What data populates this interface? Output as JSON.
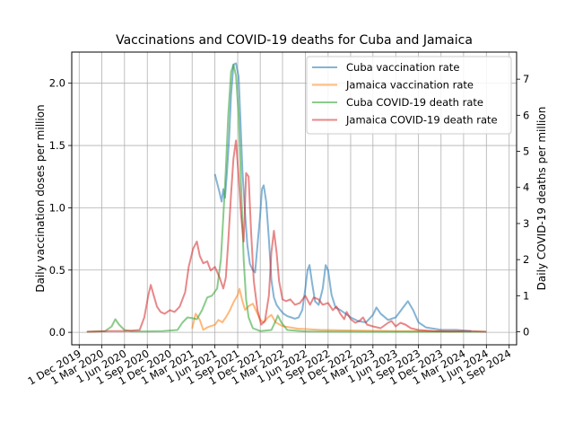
{
  "chart_data": {
    "type": "line",
    "title": "Vaccinations and COVID-19 deaths for Cuba and Jamaica",
    "ylabel_left": "Daily vaccination doses per million",
    "ylabel_right": "Daily COVID-19 deaths per million",
    "xlabel": "",
    "xlim": [
      "2019-11-01",
      "2024-10-01"
    ],
    "ylim_left": [
      -0.1,
      2.25
    ],
    "ylim_right": [
      -0.36,
      7.75
    ],
    "yticks_left": [
      0.0,
      0.5,
      1.0,
      1.5,
      2.0
    ],
    "ytick_labels_left": [
      "0.0",
      "0.5",
      "1.0",
      "1.5",
      "2.0"
    ],
    "yticks_right": [
      0,
      1,
      2,
      3,
      4,
      5,
      6,
      7
    ],
    "ytick_labels_right": [
      "0",
      "1",
      "2",
      "3",
      "4",
      "5",
      "6",
      "7"
    ],
    "xticks": [
      "2019-12-01",
      "2020-03-01",
      "2020-06-01",
      "2020-09-01",
      "2020-12-01",
      "2021-03-01",
      "2021-06-01",
      "2021-09-01",
      "2021-12-01",
      "2022-03-01",
      "2022-06-01",
      "2022-09-01",
      "2022-12-01",
      "2023-03-01",
      "2023-06-01",
      "2023-09-01",
      "2023-12-01",
      "2024-03-01",
      "2024-06-01",
      "2024-09-01"
    ],
    "xtick_labels": [
      "1 Dec 2019",
      "1 Mar 2020",
      "1 Jun 2020",
      "1 Sep 2020",
      "1 Dec 2020",
      "1 Mar 2021",
      "1 Jun 2021",
      "1 Sep 2021",
      "1 Dec 2021",
      "1 Mar 2022",
      "1 Jun 2022",
      "1 Sep 2022",
      "1 Dec 2022",
      "1 Mar 2023",
      "1 Jun 2023",
      "1 Sep 2023",
      "1 Dec 2023",
      "1 Mar 2024",
      "1 Jun 2024",
      "1 Sep 2024"
    ],
    "grid": true,
    "legend_position": "top-right",
    "series": [
      {
        "name": "Cuba vaccination rate",
        "axis": "left",
        "color": "#1f77b4",
        "points": [
          [
            "2021-06-01",
            1.27
          ],
          [
            "2021-06-10",
            1.2
          ],
          [
            "2021-06-20",
            1.12
          ],
          [
            "2021-06-28",
            1.05
          ],
          [
            "2021-07-05",
            1.15
          ],
          [
            "2021-07-12",
            1.08
          ],
          [
            "2021-07-20",
            1.3
          ],
          [
            "2021-07-28",
            1.55
          ],
          [
            "2021-08-05",
            1.9
          ],
          [
            "2021-08-15",
            2.15
          ],
          [
            "2021-08-25",
            2.16
          ],
          [
            "2021-09-05",
            2.05
          ],
          [
            "2021-09-12",
            1.7
          ],
          [
            "2021-09-20",
            1.3
          ],
          [
            "2021-10-01",
            0.95
          ],
          [
            "2021-10-10",
            0.7
          ],
          [
            "2021-10-20",
            0.55
          ],
          [
            "2021-11-01",
            0.5
          ],
          [
            "2021-11-10",
            0.48
          ],
          [
            "2021-11-20",
            0.7
          ],
          [
            "2021-12-01",
            0.95
          ],
          [
            "2021-12-08",
            1.15
          ],
          [
            "2021-12-15",
            1.18
          ],
          [
            "2021-12-25",
            1.05
          ],
          [
            "2022-01-05",
            0.75
          ],
          [
            "2022-01-15",
            0.42
          ],
          [
            "2022-01-25",
            0.28
          ],
          [
            "2022-02-05",
            0.22
          ],
          [
            "2022-02-20",
            0.18
          ],
          [
            "2022-03-05",
            0.15
          ],
          [
            "2022-03-20",
            0.13
          ],
          [
            "2022-04-05",
            0.12
          ],
          [
            "2022-04-20",
            0.11
          ],
          [
            "2022-05-05",
            0.12
          ],
          [
            "2022-05-20",
            0.18
          ],
          [
            "2022-06-01",
            0.35
          ],
          [
            "2022-06-10",
            0.5
          ],
          [
            "2022-06-18",
            0.54
          ],
          [
            "2022-06-28",
            0.4
          ],
          [
            "2022-07-10",
            0.25
          ],
          [
            "2022-07-25",
            0.22
          ],
          [
            "2022-08-10",
            0.35
          ],
          [
            "2022-08-22",
            0.54
          ],
          [
            "2022-09-01",
            0.5
          ],
          [
            "2022-09-15",
            0.3
          ],
          [
            "2022-10-01",
            0.2
          ],
          [
            "2022-10-20",
            0.18
          ],
          [
            "2022-11-10",
            0.15
          ],
          [
            "2022-12-01",
            0.12
          ],
          [
            "2023-01-01",
            0.09
          ],
          [
            "2023-02-01",
            0.08
          ],
          [
            "2023-03-01",
            0.14
          ],
          [
            "2023-03-15",
            0.2
          ],
          [
            "2023-04-01",
            0.15
          ],
          [
            "2023-05-01",
            0.1
          ],
          [
            "2023-06-01",
            0.12
          ],
          [
            "2023-07-01",
            0.2
          ],
          [
            "2023-07-20",
            0.25
          ],
          [
            "2023-08-10",
            0.18
          ],
          [
            "2023-09-01",
            0.08
          ],
          [
            "2023-10-01",
            0.04
          ],
          [
            "2023-12-01",
            0.02
          ],
          [
            "2024-02-01",
            0.02
          ],
          [
            "2024-04-01",
            0.01
          ]
        ]
      },
      {
        "name": "Jamaica vaccination rate",
        "axis": "left",
        "color": "#ff7f0e",
        "points": [
          [
            "2021-03-01",
            0.03
          ],
          [
            "2021-03-15",
            0.15
          ],
          [
            "2021-04-01",
            0.1
          ],
          [
            "2021-04-15",
            0.02
          ],
          [
            "2021-05-01",
            0.04
          ],
          [
            "2021-05-15",
            0.05
          ],
          [
            "2021-06-01",
            0.06
          ],
          [
            "2021-06-15",
            0.1
          ],
          [
            "2021-07-01",
            0.08
          ],
          [
            "2021-07-15",
            0.12
          ],
          [
            "2021-08-01",
            0.18
          ],
          [
            "2021-08-15",
            0.24
          ],
          [
            "2021-09-01",
            0.3
          ],
          [
            "2021-09-08",
            0.35
          ],
          [
            "2021-09-20",
            0.25
          ],
          [
            "2021-10-01",
            0.18
          ],
          [
            "2021-10-15",
            0.21
          ],
          [
            "2021-11-01",
            0.23
          ],
          [
            "2021-11-15",
            0.17
          ],
          [
            "2021-12-01",
            0.1
          ],
          [
            "2021-12-15",
            0.08
          ],
          [
            "2022-01-01",
            0.12
          ],
          [
            "2022-01-15",
            0.14
          ],
          [
            "2022-02-01",
            0.08
          ],
          [
            "2022-03-01",
            0.05
          ],
          [
            "2022-05-01",
            0.03
          ],
          [
            "2022-08-01",
            0.02
          ],
          [
            "2022-12-01",
            0.015
          ],
          [
            "2023-06-01",
            0.01
          ],
          [
            "2023-12-01",
            0.008
          ],
          [
            "2024-03-01",
            0.005
          ]
        ]
      },
      {
        "name": "Cuba COVID-19 death rate",
        "axis": "right",
        "color": "#2ca02c",
        "points": [
          [
            "2020-01-01",
            0
          ],
          [
            "2020-03-15",
            0.02
          ],
          [
            "2020-04-10",
            0.15
          ],
          [
            "2020-04-25",
            0.35
          ],
          [
            "2020-05-10",
            0.2
          ],
          [
            "2020-06-01",
            0.05
          ],
          [
            "2020-07-01",
            0.01
          ],
          [
            "2020-09-01",
            0.01
          ],
          [
            "2020-11-01",
            0.02
          ],
          [
            "2021-01-01",
            0.05
          ],
          [
            "2021-01-20",
            0.25
          ],
          [
            "2021-02-10",
            0.4
          ],
          [
            "2021-03-01",
            0.38
          ],
          [
            "2021-03-20",
            0.35
          ],
          [
            "2021-04-10",
            0.6
          ],
          [
            "2021-05-01",
            0.95
          ],
          [
            "2021-05-20",
            1.0
          ],
          [
            "2021-06-10",
            1.2
          ],
          [
            "2021-06-25",
            2.0
          ],
          [
            "2021-07-05",
            3.2
          ],
          [
            "2021-07-15",
            4.5
          ],
          [
            "2021-07-25",
            6.0
          ],
          [
            "2021-08-05",
            7.2
          ],
          [
            "2021-08-15",
            7.4
          ],
          [
            "2021-08-25",
            7.1
          ],
          [
            "2021-09-05",
            6.0
          ],
          [
            "2021-09-15",
            4.0
          ],
          [
            "2021-09-25",
            2.0
          ],
          [
            "2021-10-05",
            0.9
          ],
          [
            "2021-10-15",
            0.4
          ],
          [
            "2021-11-01",
            0.1
          ],
          [
            "2021-12-01",
            0.02
          ],
          [
            "2022-01-15",
            0.05
          ],
          [
            "2022-02-01",
            0.3
          ],
          [
            "2022-02-10",
            0.45
          ],
          [
            "2022-02-25",
            0.25
          ],
          [
            "2022-03-20",
            0.05
          ],
          [
            "2022-06-01",
            0.01
          ],
          [
            "2023-01-01",
            0.0
          ],
          [
            "2024-06-01",
            0.0
          ]
        ]
      },
      {
        "name": "Jamaica COVID-19 death rate",
        "axis": "right",
        "color": "#d62728",
        "points": [
          [
            "2020-01-01",
            0
          ],
          [
            "2020-04-01",
            0.02
          ],
          [
            "2020-06-01",
            0.02
          ],
          [
            "2020-08-01",
            0.05
          ],
          [
            "2020-08-20",
            0.4
          ],
          [
            "2020-09-05",
            1.0
          ],
          [
            "2020-09-15",
            1.3
          ],
          [
            "2020-09-25",
            1.05
          ],
          [
            "2020-10-10",
            0.7
          ],
          [
            "2020-10-25",
            0.55
          ],
          [
            "2020-11-10",
            0.5
          ],
          [
            "2020-12-01",
            0.6
          ],
          [
            "2020-12-20",
            0.55
          ],
          [
            "2021-01-10",
            0.7
          ],
          [
            "2021-02-01",
            1.1
          ],
          [
            "2021-02-15",
            1.8
          ],
          [
            "2021-03-05",
            2.3
          ],
          [
            "2021-03-20",
            2.5
          ],
          [
            "2021-04-01",
            2.1
          ],
          [
            "2021-04-15",
            1.9
          ],
          [
            "2021-05-01",
            1.95
          ],
          [
            "2021-05-15",
            1.7
          ],
          [
            "2021-06-01",
            1.8
          ],
          [
            "2021-06-20",
            1.5
          ],
          [
            "2021-07-05",
            1.2
          ],
          [
            "2021-07-15",
            1.5
          ],
          [
            "2021-07-25",
            2.5
          ],
          [
            "2021-08-05",
            3.8
          ],
          [
            "2021-08-15",
            4.8
          ],
          [
            "2021-08-25",
            5.3
          ],
          [
            "2021-09-05",
            4.3
          ],
          [
            "2021-09-15",
            3.2
          ],
          [
            "2021-09-25",
            2.5
          ],
          [
            "2021-10-05",
            4.4
          ],
          [
            "2021-10-15",
            4.3
          ],
          [
            "2021-10-25",
            2.8
          ],
          [
            "2021-11-05",
            1.4
          ],
          [
            "2021-11-20",
            0.6
          ],
          [
            "2021-12-05",
            0.2
          ],
          [
            "2021-12-20",
            0.3
          ],
          [
            "2022-01-05",
            1.0
          ],
          [
            "2022-01-15",
            2.2
          ],
          [
            "2022-01-25",
            2.8
          ],
          [
            "2022-02-05",
            2.2
          ],
          [
            "2022-02-15",
            1.4
          ],
          [
            "2022-03-01",
            0.9
          ],
          [
            "2022-03-15",
            0.85
          ],
          [
            "2022-04-01",
            0.9
          ],
          [
            "2022-04-20",
            0.75
          ],
          [
            "2022-05-10",
            0.8
          ],
          [
            "2022-06-01",
            1.0
          ],
          [
            "2022-06-20",
            0.75
          ],
          [
            "2022-07-05",
            0.95
          ],
          [
            "2022-07-25",
            0.9
          ],
          [
            "2022-08-10",
            0.75
          ],
          [
            "2022-09-01",
            0.8
          ],
          [
            "2022-09-20",
            0.6
          ],
          [
            "2022-10-05",
            0.7
          ],
          [
            "2022-10-20",
            0.5
          ],
          [
            "2022-11-05",
            0.35
          ],
          [
            "2022-11-15",
            0.55
          ],
          [
            "2022-12-01",
            0.35
          ],
          [
            "2022-12-20",
            0.25
          ],
          [
            "2023-01-05",
            0.3
          ],
          [
            "2023-01-20",
            0.4
          ],
          [
            "2023-02-05",
            0.2
          ],
          [
            "2023-03-01",
            0.15
          ],
          [
            "2023-04-01",
            0.1
          ],
          [
            "2023-05-01",
            0.25
          ],
          [
            "2023-05-15",
            0.3
          ],
          [
            "2023-06-01",
            0.15
          ],
          [
            "2023-06-20",
            0.25
          ],
          [
            "2023-07-10",
            0.2
          ],
          [
            "2023-08-01",
            0.1
          ],
          [
            "2023-09-01",
            0.05
          ],
          [
            "2023-11-01",
            0.02
          ],
          [
            "2024-01-01",
            0.01
          ],
          [
            "2024-04-01",
            0.02
          ],
          [
            "2024-06-01",
            0.0
          ]
        ]
      }
    ]
  }
}
